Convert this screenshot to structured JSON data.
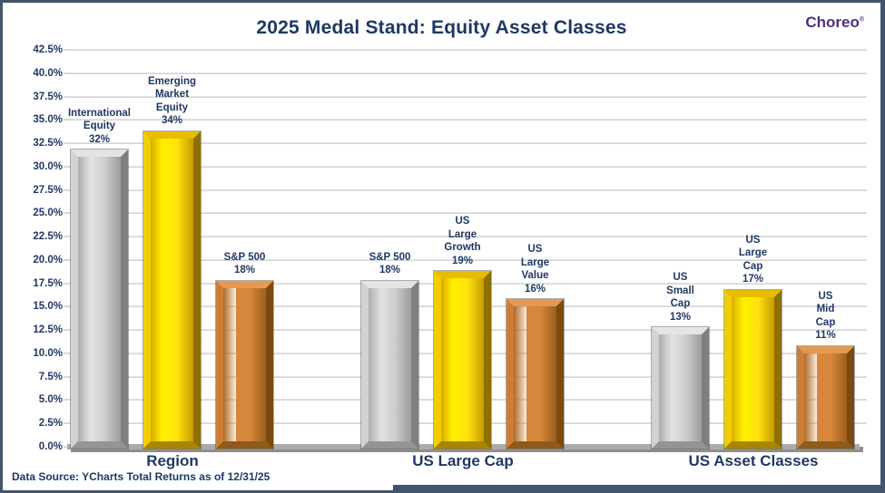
{
  "logo": {
    "text": "Choreo",
    "mark": "®"
  },
  "colors": {
    "title_navy": "#1F3864",
    "logo_purple": "#4F2D7F",
    "silver": "#C9C9C9",
    "gold": "#FFE10E",
    "bronze": "#D6873C",
    "gridline": "#E2E2E2",
    "frame_border": "#44546A"
  },
  "chart_data": {
    "type": "bar",
    "title": "2025 Medal Stand: Equity Asset Classes",
    "footer": "Data Source: YCharts Total Returns as of 12/31/25",
    "xlabel": "",
    "ylabel": "",
    "ylim": [
      0,
      42.5
    ],
    "ytick_step": 2.5,
    "ytick_labels": [
      "0.0%",
      "2.5%",
      "5.0%",
      "7.5%",
      "10.0%",
      "12.5%",
      "15.0%",
      "17.5%",
      "20.0%",
      "22.5%",
      "25.0%",
      "27.5%",
      "30.0%",
      "32.5%",
      "35.0%",
      "37.5%",
      "40.0%",
      "42.5%"
    ],
    "grid": "horizontal",
    "legend": "none",
    "groups": [
      {
        "category": "Region",
        "bars": [
          {
            "label_lines": [
              "International",
              "Equity"
            ],
            "value": 32,
            "value_label": "32%",
            "medal": "silver"
          },
          {
            "label_lines": [
              "Emerging",
              "Market",
              "Equity"
            ],
            "value": 34,
            "value_label": "34%",
            "medal": "gold"
          },
          {
            "label_lines": [
              "S&P 500"
            ],
            "value": 18,
            "value_label": "18%",
            "medal": "bronze"
          }
        ]
      },
      {
        "category": "US Large Cap",
        "bars": [
          {
            "label_lines": [
              "S&P 500"
            ],
            "value": 18,
            "value_label": "18%",
            "medal": "silver"
          },
          {
            "label_lines": [
              "US",
              "Large",
              "Growth"
            ],
            "value": 19,
            "value_label": "19%",
            "medal": "gold"
          },
          {
            "label_lines": [
              "US",
              "Large",
              "Value"
            ],
            "value": 16,
            "value_label": "16%",
            "medal": "bronze"
          }
        ]
      },
      {
        "category": "US Asset Classes",
        "bars": [
          {
            "label_lines": [
              "US",
              "Small",
              "Cap"
            ],
            "value": 13,
            "value_label": "13%",
            "medal": "silver"
          },
          {
            "label_lines": [
              "US",
              "Large",
              "Cap"
            ],
            "value": 17,
            "value_label": "17%",
            "medal": "gold"
          },
          {
            "label_lines": [
              "US",
              "Mid",
              "Cap"
            ],
            "value": 11,
            "value_label": "11%",
            "medal": "bronze"
          }
        ]
      }
    ]
  }
}
